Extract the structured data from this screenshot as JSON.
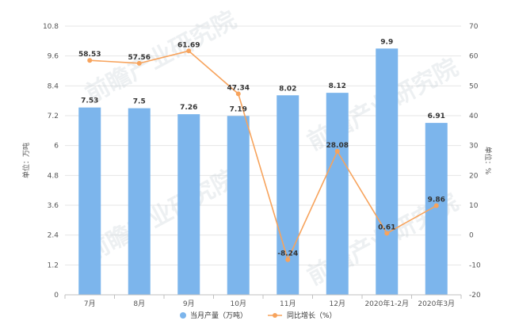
{
  "chart_data": {
    "type": "bar",
    "categories": [
      "7月",
      "8月",
      "9月",
      "10月",
      "11月",
      "12月",
      "2020年1-2月",
      "2020年3月"
    ],
    "series": [
      {
        "name": "当月产量（万吨）",
        "type": "bar",
        "axis": "left",
        "color": "#7cb5ec",
        "values": [
          7.53,
          7.5,
          7.26,
          7.19,
          8.02,
          8.12,
          9.9,
          6.91
        ],
        "labels": [
          "7.53",
          "7.5",
          "7.26",
          "7.19",
          "8.02",
          "8.12",
          "9.9",
          "6.91"
        ]
      },
      {
        "name": "同比增长（%）",
        "type": "line",
        "axis": "right",
        "color": "#f7a35c",
        "values": [
          58.53,
          57.56,
          61.69,
          47.34,
          -8.24,
          28.08,
          0.61,
          9.86
        ],
        "labels": [
          "58.53",
          "57.56",
          "61.69",
          "47.34",
          "-8.24",
          "28.08",
          "0.61",
          "9.86"
        ]
      }
    ],
    "y_left": {
      "label": "单位：万吨",
      "ylim": [
        0,
        10.8
      ],
      "ticks": [
        "0",
        "1.2",
        "2.4",
        "3.6",
        "4.8",
        "6",
        "7.2",
        "8.4",
        "9.6",
        "10.8"
      ]
    },
    "y_right": {
      "label": "单位：%",
      "ylim": [
        -20,
        70
      ],
      "ticks": [
        "-20",
        "-10",
        "0",
        "10",
        "20",
        "30",
        "40",
        "50",
        "60",
        "70"
      ]
    },
    "grid": true,
    "legend": "bottom-center",
    "watermark": "前瞻产业研究院"
  }
}
